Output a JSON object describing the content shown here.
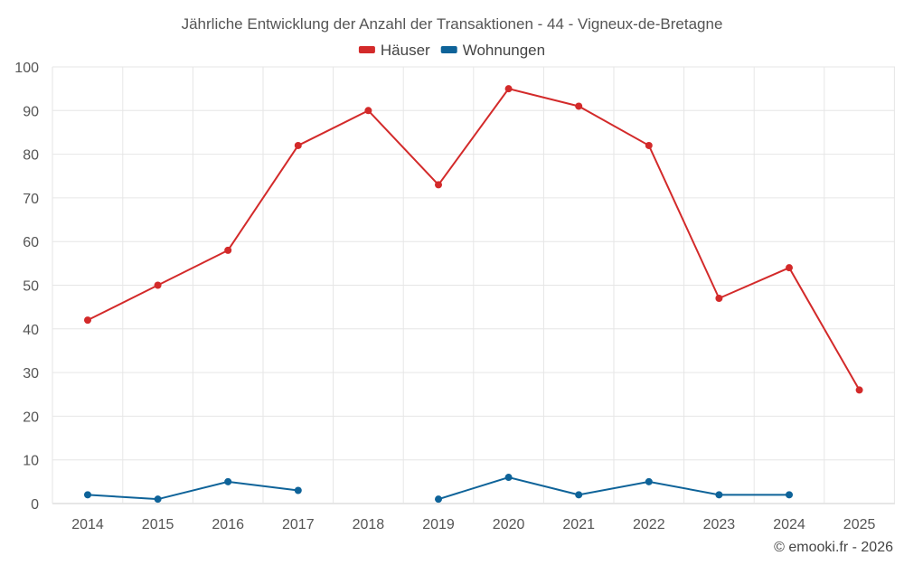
{
  "chart_data": {
    "type": "line",
    "title": "Jährliche Entwicklung der Anzahl der Transaktionen - 44 - Vigneux-de-Bretagne",
    "x": [
      "2014",
      "2015",
      "2016",
      "2017",
      "2018",
      "2019",
      "2020",
      "2021",
      "2022",
      "2023",
      "2024",
      "2025"
    ],
    "ylim": [
      0,
      100
    ],
    "yticks": [
      0,
      10,
      20,
      30,
      40,
      50,
      60,
      70,
      80,
      90,
      100
    ],
    "grid": true,
    "legend_position": "top-center",
    "series": [
      {
        "name": "Häuser",
        "color": "#d32a2a",
        "values": [
          42,
          50,
          58,
          82,
          90,
          73,
          95,
          91,
          82,
          47,
          54,
          26
        ]
      },
      {
        "name": "Wohnungen",
        "color": "#0e6399",
        "values": [
          2,
          1,
          5,
          3,
          null,
          1,
          6,
          2,
          5,
          2,
          2,
          null
        ]
      }
    ]
  },
  "credit": "© emooki.fr - 2026"
}
